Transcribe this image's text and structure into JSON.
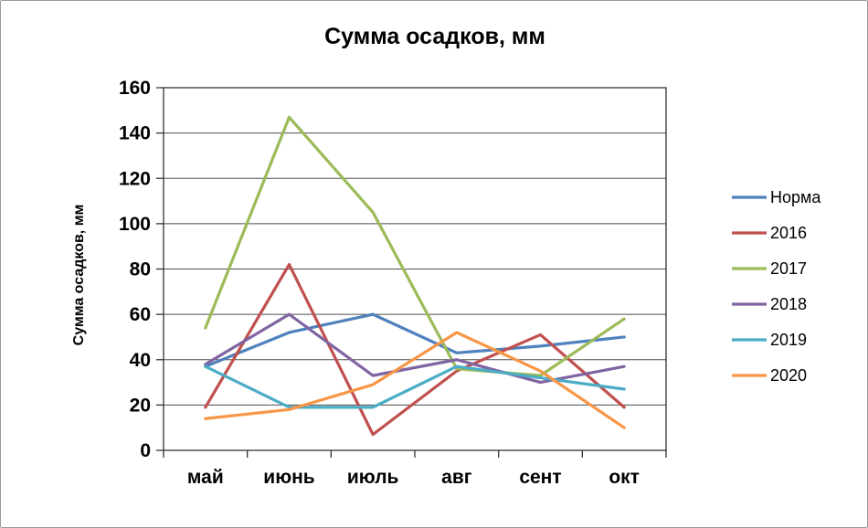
{
  "chart_data": {
    "type": "line",
    "title": "Сумма осадков, мм",
    "ylabel": "Сумма осадков, мм",
    "xlabel": "",
    "categories": [
      "май",
      "июнь",
      "июль",
      "авг",
      "сент",
      "окт"
    ],
    "series": [
      {
        "name": "Норма",
        "color": "#4F81BD",
        "values": [
          37,
          52,
          60,
          43,
          46,
          50
        ]
      },
      {
        "name": "2016",
        "color": "#C0504D",
        "values": [
          19,
          82,
          7,
          35,
          51,
          19
        ]
      },
      {
        "name": "2017",
        "color": "#9BBB59",
        "values": [
          54,
          147,
          105,
          36,
          33,
          58
        ]
      },
      {
        "name": "2018",
        "color": "#8064A2",
        "values": [
          38,
          60,
          33,
          40,
          30,
          37
        ]
      },
      {
        "name": "2019",
        "color": "#4BACC6",
        "values": [
          37,
          19,
          19,
          37,
          32,
          27
        ]
      },
      {
        "name": "2020",
        "color": "#F79646",
        "values": [
          14,
          18,
          29,
          52,
          35,
          10
        ]
      }
    ],
    "ylim": [
      0,
      160
    ],
    "ytick_step": 20,
    "grid": true,
    "legend_position": "right"
  }
}
